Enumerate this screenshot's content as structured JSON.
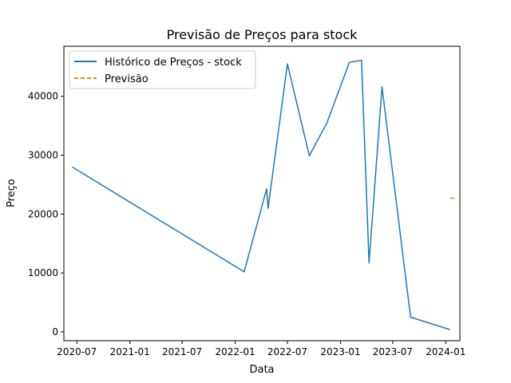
{
  "chart_data": {
    "type": "line",
    "title": "Previsão de Preços para stock",
    "xlabel": "Data",
    "ylabel": "Preço",
    "xlim": [
      "2020-05-17",
      "2024-02-19"
    ],
    "ylim": [
      -1500,
      48500
    ],
    "x_ticks": [
      "2020-07",
      "2021-01",
      "2021-07",
      "2022-01",
      "2022-07",
      "2023-01",
      "2023-07",
      "2024-01"
    ],
    "y_ticks": [
      0,
      10000,
      20000,
      30000,
      40000
    ],
    "legend": {
      "position": "top-left"
    },
    "grid": false,
    "series": [
      {
        "name": "Histórico de Preços - stock",
        "color": "#1f77b4",
        "style": "solid",
        "points": [
          {
            "x": "2020-06-15",
            "y": 28000
          },
          {
            "x": "2022-02-01",
            "y": 10200
          },
          {
            "x": "2022-04-20",
            "y": 24300
          },
          {
            "x": "2022-04-25",
            "y": 21000
          },
          {
            "x": "2022-07-01",
            "y": 45500
          },
          {
            "x": "2022-09-15",
            "y": 29900
          },
          {
            "x": "2022-11-15",
            "y": 35500
          },
          {
            "x": "2023-02-01",
            "y": 45800
          },
          {
            "x": "2023-03-15",
            "y": 46100
          },
          {
            "x": "2023-04-10",
            "y": 11700
          },
          {
            "x": "2023-05-25",
            "y": 41600
          },
          {
            "x": "2023-09-01",
            "y": 2500
          },
          {
            "x": "2024-01-15",
            "y": 400
          }
        ]
      },
      {
        "name": "Previsão",
        "color": "#ff7f0e",
        "style": "dashed",
        "points": [
          {
            "x": "2024-01-17",
            "y": 22700
          },
          {
            "x": "2024-02-06",
            "y": 22700
          }
        ]
      }
    ]
  }
}
